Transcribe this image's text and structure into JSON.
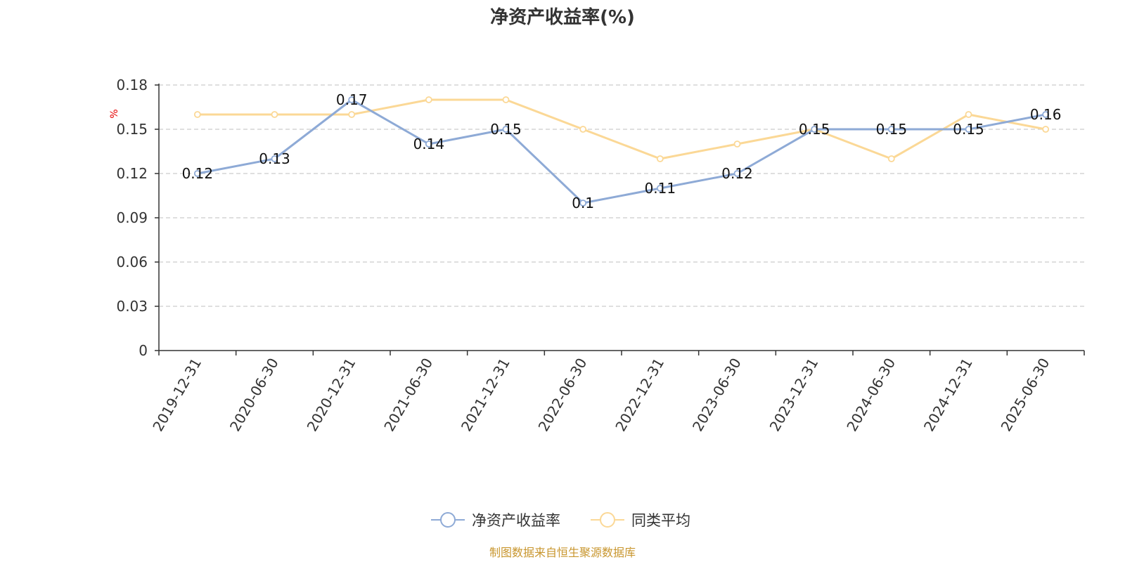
{
  "chart_data": {
    "type": "line",
    "title": "净资产收益率(%)",
    "ylabel": "%",
    "categories": [
      "2019-12-31",
      "2020-06-30",
      "2020-12-31",
      "2021-06-30",
      "2021-12-31",
      "2022-06-30",
      "2022-12-31",
      "2023-06-30",
      "2023-12-31",
      "2024-06-30",
      "2024-12-31",
      "2025-06-30"
    ],
    "ylim": [
      0,
      0.18
    ],
    "yticks": [
      "0",
      "0.03",
      "0.06",
      "0.09",
      "0.12",
      "0.15",
      "0.18"
    ],
    "grid": true,
    "legend_position": "bottom",
    "series": [
      {
        "name": "净资产收益率",
        "color": "#8eaad6",
        "values": [
          0.12,
          0.13,
          0.17,
          0.14,
          0.15,
          0.1,
          0.11,
          0.12,
          0.15,
          0.15,
          0.15,
          0.16
        ],
        "labels": [
          "0.12",
          "0.13",
          "0.17",
          "0.14",
          "0.15",
          "0.1",
          "0.11",
          "0.12",
          "0.15",
          "0.15",
          "0.15",
          "0.16"
        ]
      },
      {
        "name": "同类平均",
        "color": "#fbd896",
        "values": [
          0.16,
          0.16,
          0.16,
          0.17,
          0.17,
          0.15,
          0.13,
          0.14,
          0.15,
          0.13,
          0.16,
          0.15
        ]
      }
    ],
    "source": "制图数据来自恒生聚源数据库"
  }
}
